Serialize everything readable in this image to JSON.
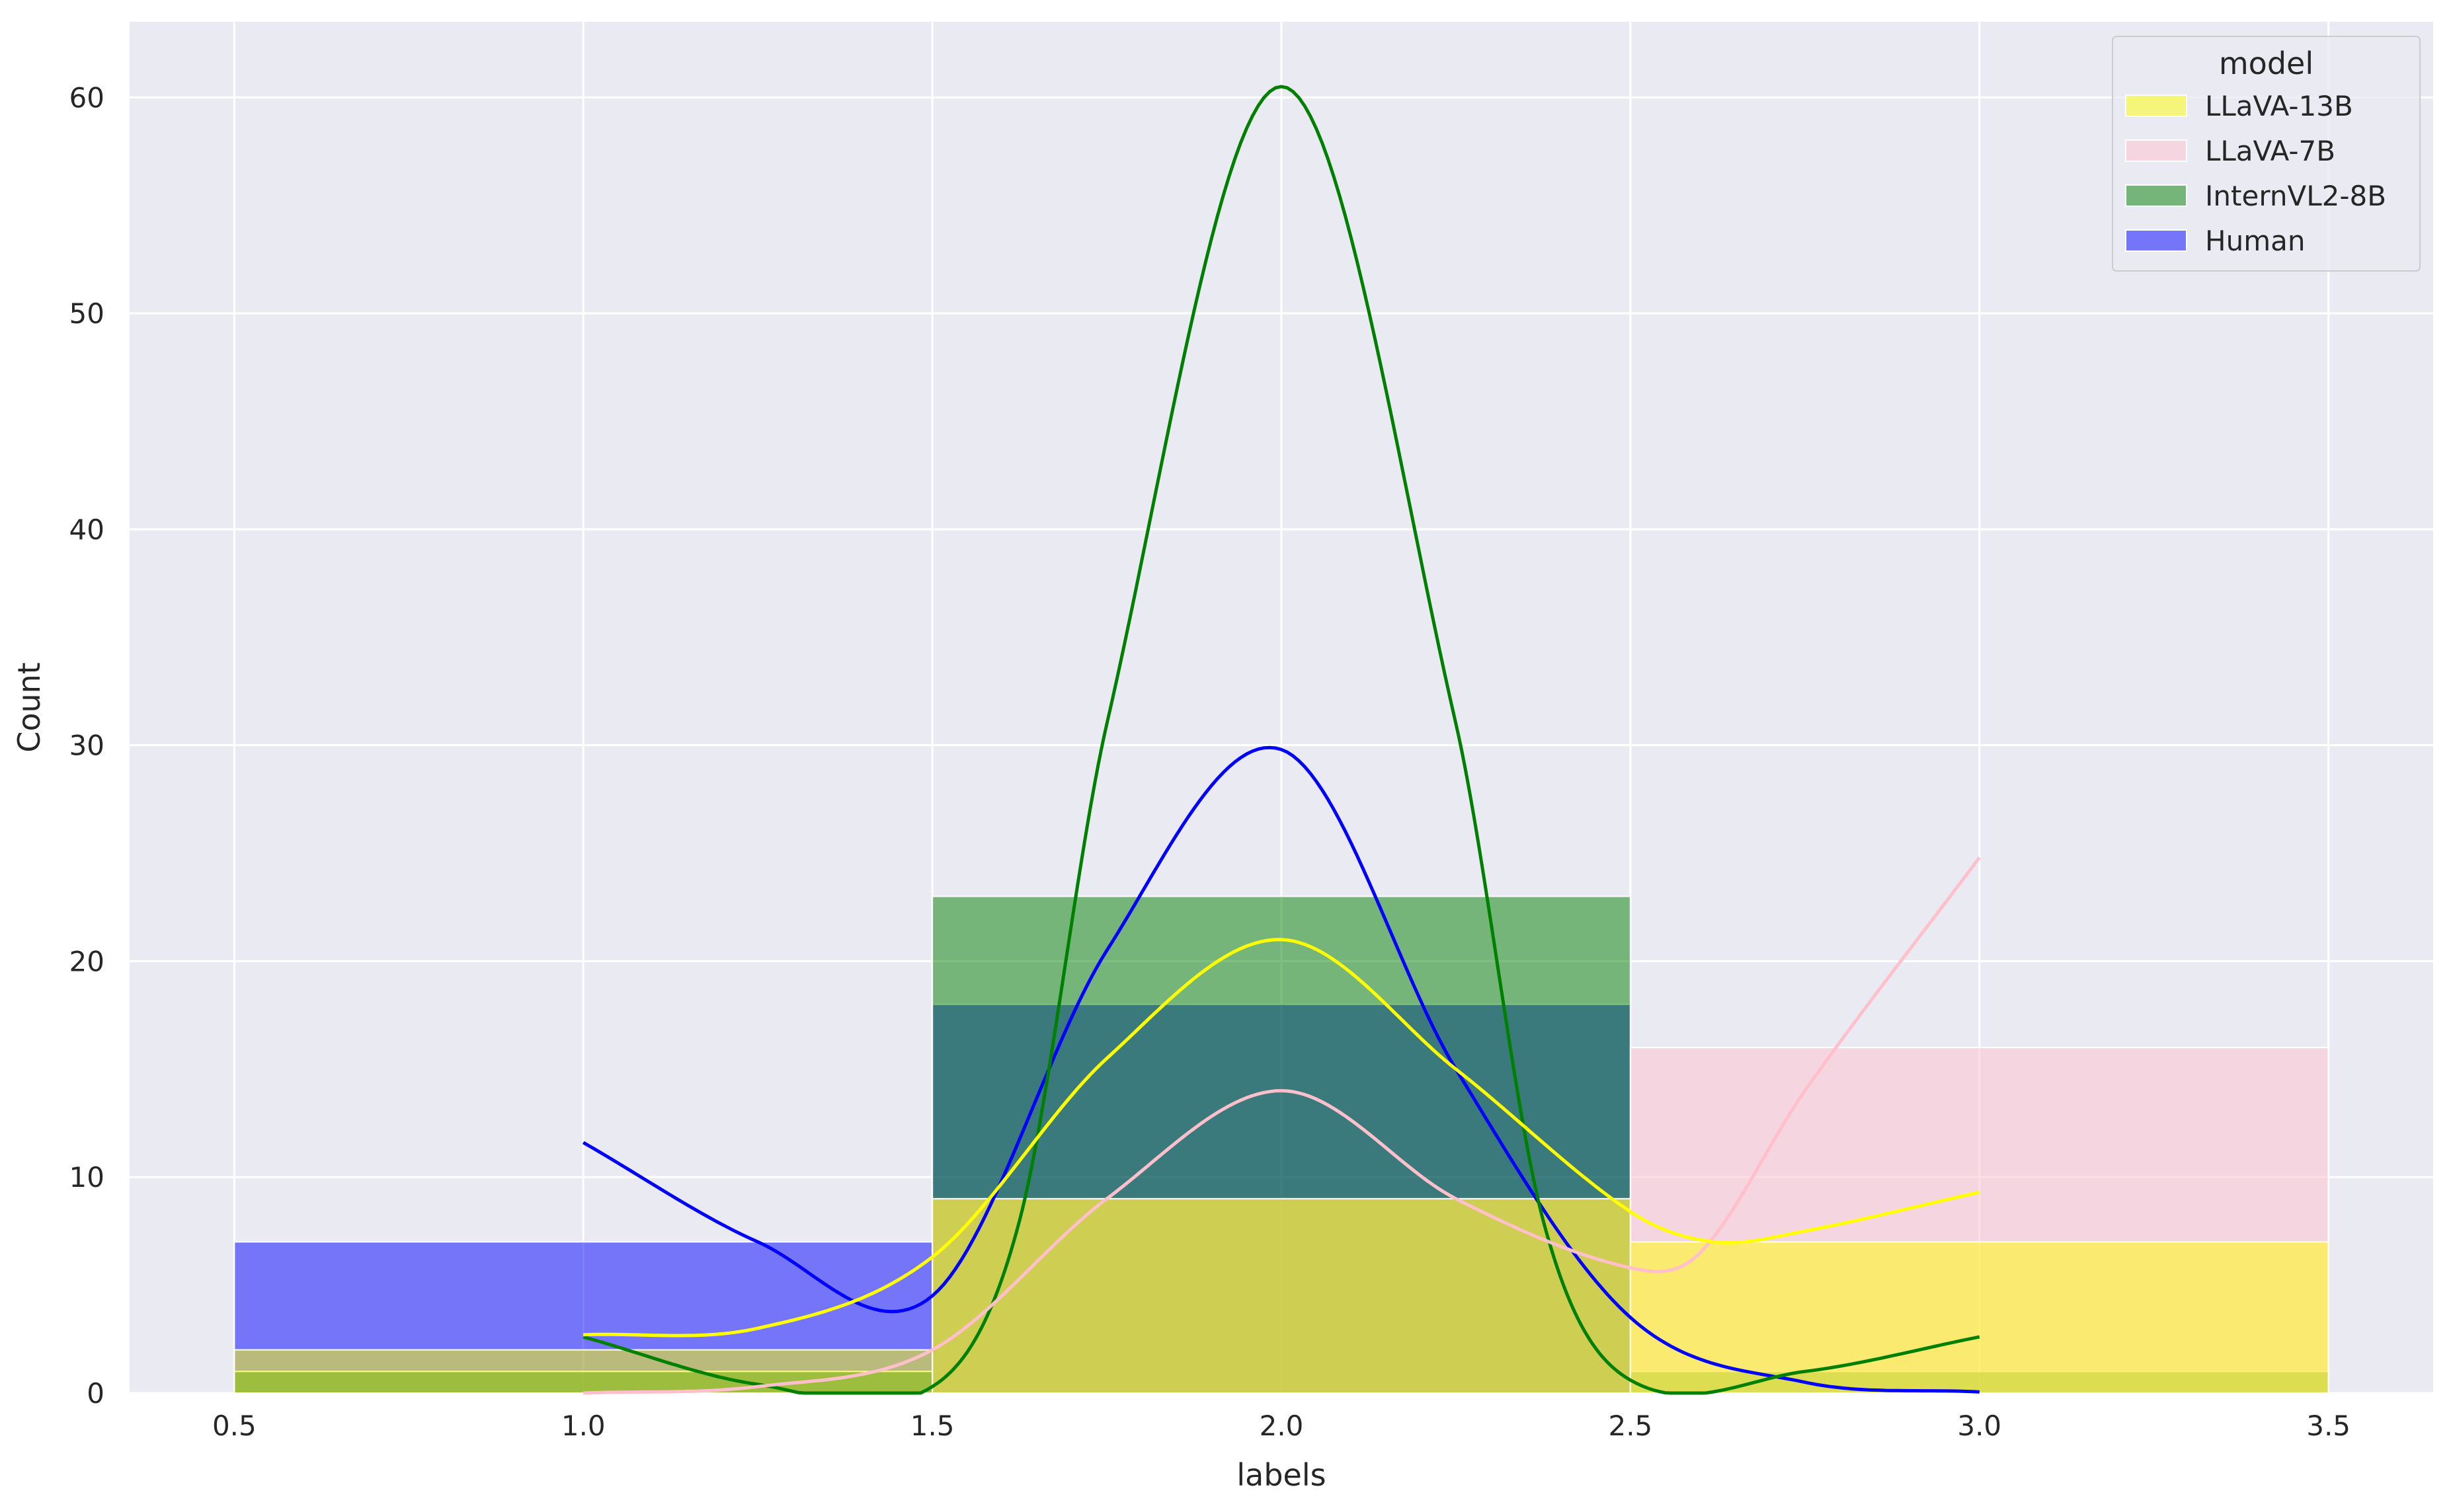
{
  "chart_data": {
    "type": "histogram",
    "title": "",
    "xlabel": "labels",
    "ylabel": "Count",
    "xlim": [
      0.35,
      3.65
    ],
    "ylim": [
      0,
      63.5
    ],
    "xticks": [
      0.5,
      1.0,
      1.5,
      2.0,
      2.5,
      3.0,
      3.5
    ],
    "yticks": [
      0,
      10,
      20,
      30,
      40,
      50,
      60
    ],
    "grid": true,
    "legend": {
      "title": "model",
      "placement": "top-right"
    },
    "bin_edges": [
      0.5,
      1.5,
      2.5,
      3.5
    ],
    "series": [
      {
        "name": "LLaVA-13B",
        "color": "#FFFF00",
        "counts": [
          2,
          9,
          7
        ],
        "kde": {
          "x": [
            1.0,
            1.25,
            1.5,
            1.75,
            2.0,
            2.25,
            2.5,
            2.62,
            2.75,
            3.0
          ],
          "y": [
            2.7,
            3.0,
            6.3,
            15.5,
            21.0,
            15.0,
            8.4,
            7.0,
            7.5,
            9.3
          ]
        }
      },
      {
        "name": "LLaVA-7B",
        "color": "#FFC0CB",
        "counts": [
          0,
          9,
          16
        ],
        "kde": {
          "x": [
            1.0,
            1.25,
            1.5,
            1.75,
            2.0,
            2.25,
            2.5,
            2.6,
            2.75,
            3.0
          ],
          "y": [
            0.0,
            0.3,
            2.0,
            9.0,
            14.0,
            9.0,
            5.8,
            6.5,
            14.0,
            24.8
          ]
        }
      },
      {
        "name": "InternVL2-8B",
        "color": "#008000",
        "counts": [
          1,
          23,
          1
        ],
        "kde": {
          "x": [
            1.0,
            1.25,
            1.5,
            1.625,
            1.75,
            2.0,
            2.25,
            2.375,
            2.5,
            2.75,
            3.0
          ],
          "y": [
            2.6,
            0.4,
            0.3,
            8.0,
            31.0,
            60.5,
            31.0,
            8.0,
            0.6,
            1.0,
            2.6
          ]
        }
      },
      {
        "name": "Human",
        "color": "#0000FF",
        "counts": [
          7,
          18,
          0
        ],
        "kde": {
          "x": [
            1.0,
            1.25,
            1.5,
            1.75,
            2.0,
            2.25,
            2.5,
            2.75,
            3.0
          ],
          "y": [
            11.6,
            7.0,
            4.5,
            20.5,
            29.8,
            15.0,
            3.5,
            0.5,
            0.05
          ]
        }
      }
    ]
  }
}
